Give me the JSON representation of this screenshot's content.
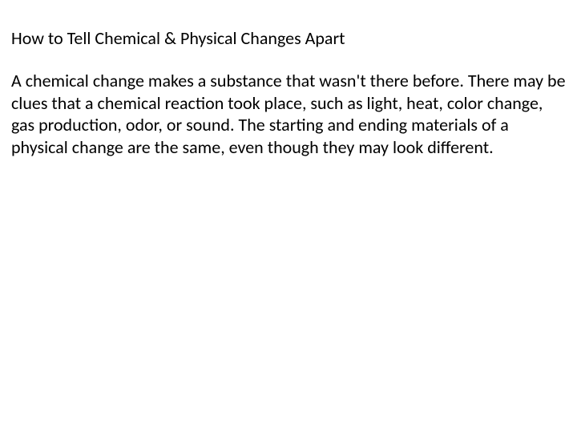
{
  "document": {
    "heading": "How to Tell Chemical & Physical Changes Apart",
    "body": "A chemical change makes a substance that wasn't there before. There may be clues that a chemical reaction took place, such as light, heat, color change, gas production, odor, or sound. The starting and ending materials of a physical change are the same, even though they may look different.",
    "text_color": "#000000",
    "background_color": "#ffffff",
    "heading_fontsize": 22,
    "body_fontsize": 22,
    "font_family": "Calibri"
  }
}
